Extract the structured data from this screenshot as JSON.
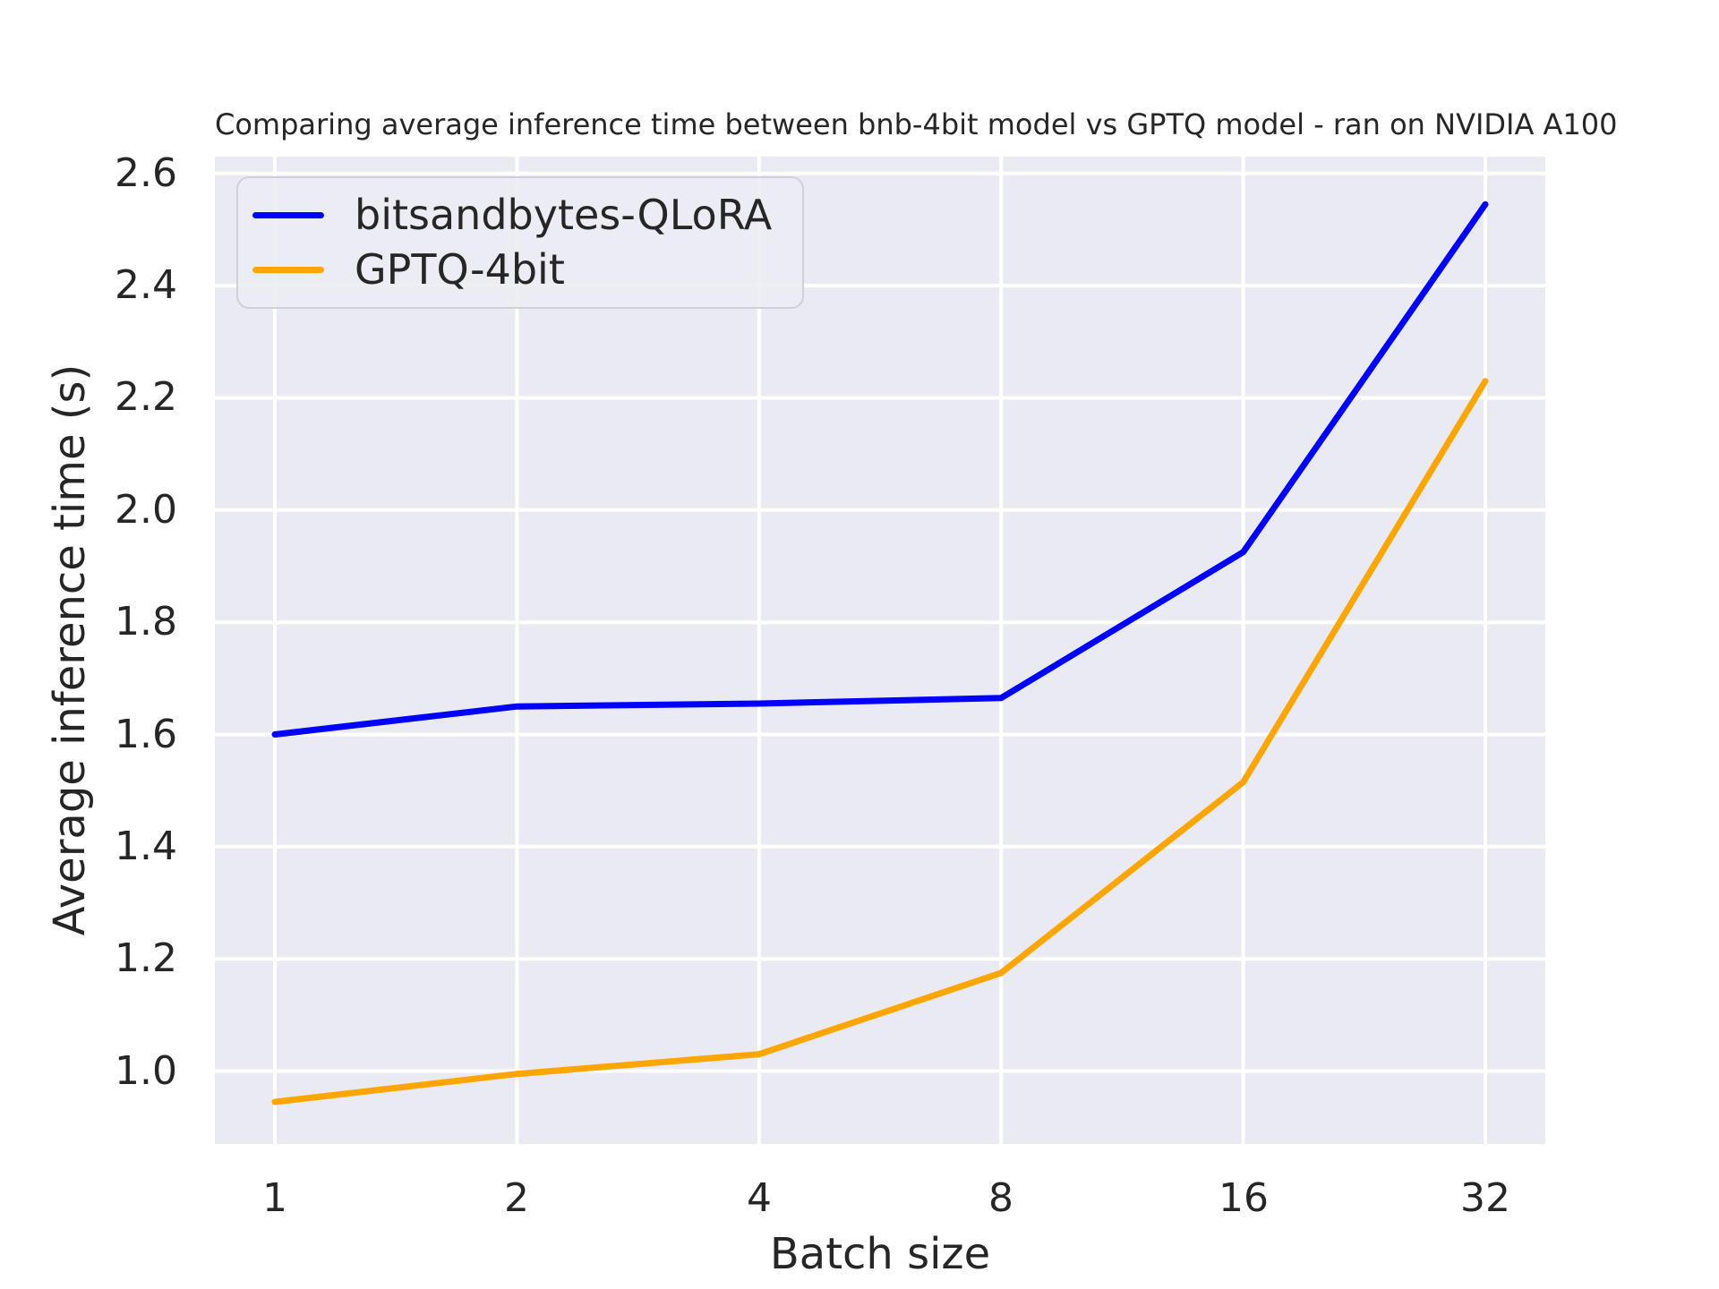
{
  "chart_data": {
    "type": "line",
    "title": "Comparing average inference time between bnb-4bit model vs GPTQ model - ran on NVIDIA A100",
    "xlabel": "Batch size",
    "ylabel": "Average inference time (s)",
    "x_scale": "log2-categorical",
    "categories": [
      1,
      2,
      4,
      8,
      16,
      32
    ],
    "xticklabels": [
      "1",
      "2",
      "4",
      "8",
      "16",
      "32"
    ],
    "yticks": [
      1.0,
      1.2,
      1.4,
      1.6,
      1.8,
      2.0,
      2.2,
      2.4,
      2.6
    ],
    "yticklabels": [
      "1.0",
      "1.2",
      "1.4",
      "1.6",
      "1.8",
      "2.0",
      "2.2",
      "2.4",
      "2.6"
    ],
    "ylim": [
      0.87,
      2.63
    ],
    "grid": true,
    "legend_position": "upper-left",
    "series": [
      {
        "name": "bitsandbytes-QLoRA",
        "color": "#0000ff",
        "values": [
          1.6,
          1.65,
          1.655,
          1.665,
          1.925,
          2.545
        ]
      },
      {
        "name": "GPTQ-4bit",
        "color": "#ffa500",
        "values": [
          0.945,
          0.995,
          1.03,
          1.175,
          1.515,
          2.23
        ]
      }
    ],
    "colors": {
      "plot_background": "#eaeaf2",
      "grid": "#ffffff",
      "text": "#262626",
      "legend_border": "#d0d0d8"
    }
  }
}
